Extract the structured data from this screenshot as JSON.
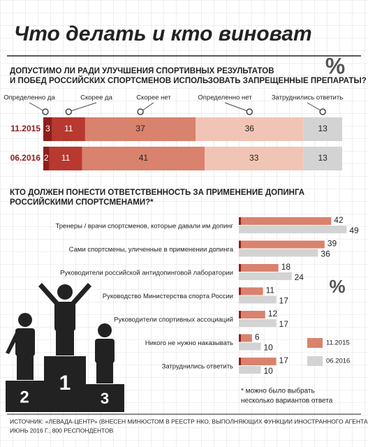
{
  "title": "Что делать и кто виноват",
  "chart_data": [
    {
      "type": "stacked-bar",
      "title": [
        "ДОПУСТИМО ЛИ РАДИ УЛУЧШЕНИЯ СПОРТИВНЫХ РЕЗУЛЬТАТОВ",
        "И ПОБЕД РОССИЙСКИХ СПОРТСМЕНОВ ИСПОЛЬЗОВАТЬ ЗАПРЕЩЕННЫЕ ПРЕПАРАТЫ?"
      ],
      "unit": "%",
      "categories": [
        "11.2015",
        "06.2016"
      ],
      "series": [
        {
          "name": "Определенно да",
          "color": "#8e1f1c",
          "values": [
            3,
            2
          ]
        },
        {
          "name": "Скорее да",
          "color": "#b8392f",
          "values": [
            11,
            11
          ]
        },
        {
          "name": "Скорее нет",
          "color": "#d9826d",
          "values": [
            37,
            41
          ]
        },
        {
          "name": "Определенно нет",
          "color": "#f1c5b5",
          "values": [
            36,
            33
          ]
        },
        {
          "name": "Затруднились ответить",
          "color": "#d3d3d3",
          "values": [
            13,
            13
          ]
        }
      ]
    },
    {
      "type": "grouped-bar",
      "title": [
        "КТО ДОЛЖЕН ПОНЕСТИ ОТВЕТСТВЕННОСТЬ ЗА ПРИМЕНЕНИЕ ДОПИНГА",
        "РОССИЙСКИМИ СПОРТСМЕНАМИ?*"
      ],
      "unit": "%",
      "categories": [
        "Тренеры / врачи спортсменов, которые давали им допинг",
        "Сами спортсмены, уличенные в применении допинга",
        "Руководители российской антидопинговой лаборатории",
        "Руководство Министерства спорта России",
        "Руководители спортивных ассоциаций",
        "Никого не нужно наказывать",
        "Затруднились ответить"
      ],
      "series": [
        {
          "name": "11.2015",
          "color": "#d9826d",
          "values": [
            42,
            39,
            18,
            11,
            12,
            6,
            17
          ]
        },
        {
          "name": "06.2016",
          "color": "#d3d3d3",
          "values": [
            49,
            36,
            24,
            17,
            17,
            10,
            10
          ]
        }
      ],
      "footnote": [
        "* можно было выбрать",
        "несколько вариантов ответа"
      ]
    }
  ],
  "podium": [
    "2",
    "1",
    "3"
  ],
  "source": [
    "ИСТОЧНИК: «ЛЕВАДА-ЦЕНТР» (ВНЕСЕН МИНЮСТОМ В РЕЕСТР НКО, ВЫПОЛНЯЮЩИХ ФУНКЦИИ ИНОСТРАННОГО АГЕНТА),",
    "ИЮНЬ 2016 Г., 800 РЕСПОНДЕНТОВ"
  ]
}
